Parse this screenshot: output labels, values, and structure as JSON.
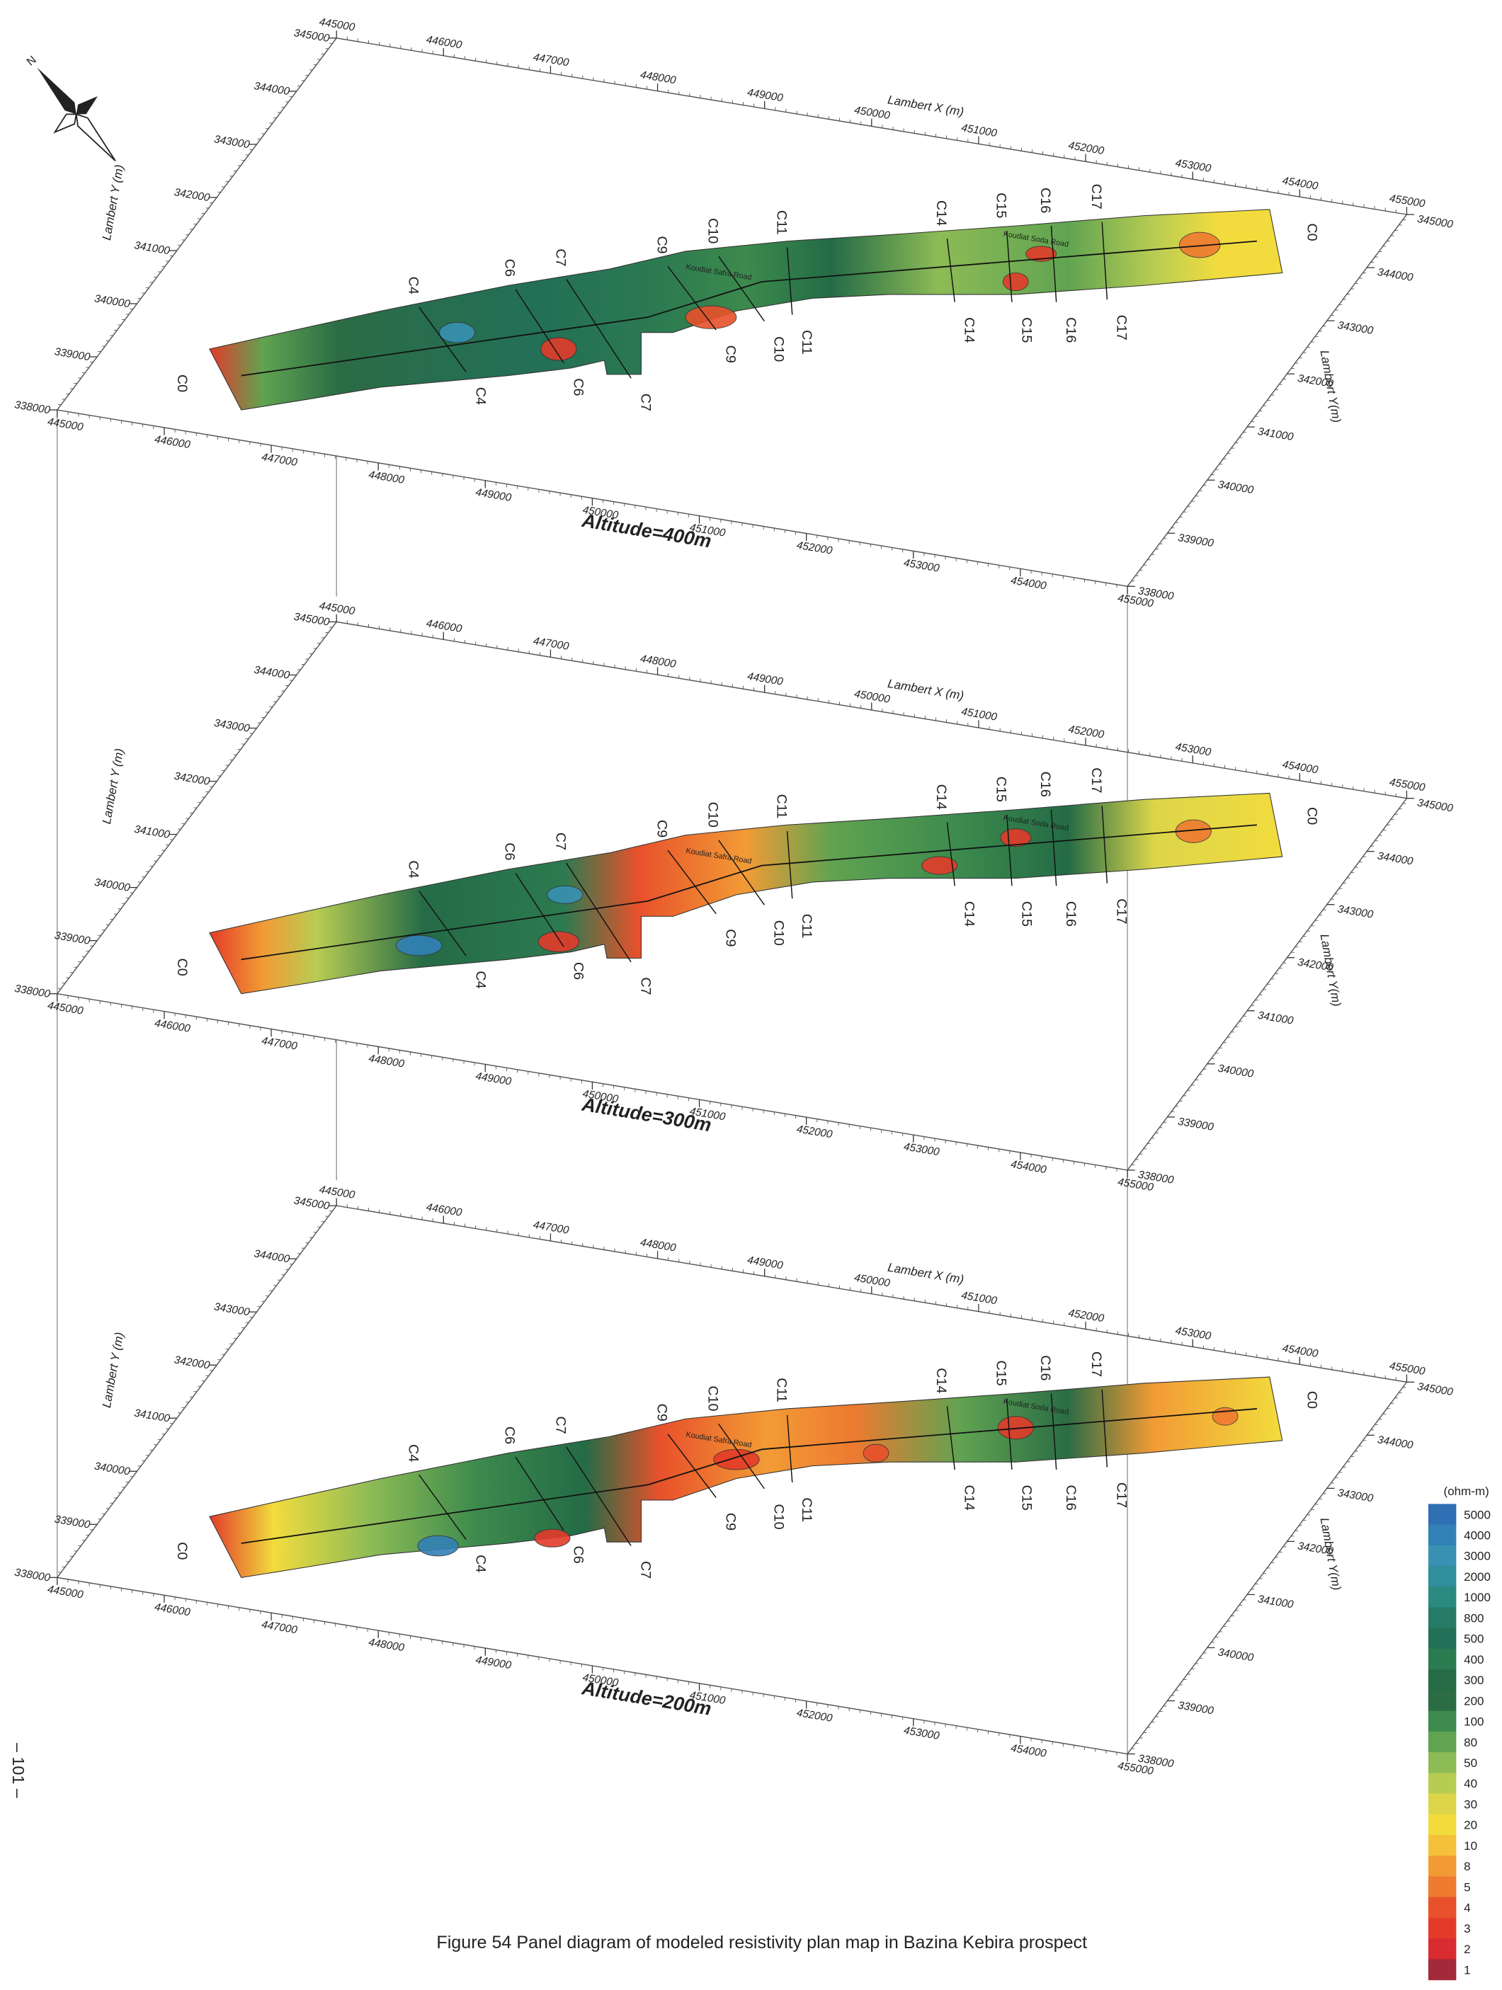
{
  "figure": {
    "caption": "Figure 54   Panel diagram of modeled resistivity plan map in Bazina Kebira prospect",
    "page_number": "– 101 –"
  },
  "axes": {
    "x_label": "Lambert X (m)",
    "y_label": "Lambert Y (m)",
    "y_label_right": "Lambert Y(m)",
    "x_ticks": [
      445000,
      446000,
      447000,
      448000,
      449000,
      450000,
      451000,
      452000,
      453000,
      454000,
      455000
    ],
    "y_ticks": [
      338000,
      339000,
      340000,
      341000,
      342000,
      343000,
      344000,
      345000
    ]
  },
  "profiles": [
    "C0",
    "C4",
    "C6",
    "C7",
    "C9",
    "C10",
    "C11",
    "C14",
    "C15",
    "C16",
    "C17"
  ],
  "road_labels": [
    "Koudiat Safra Road",
    "Koudiat Soda Road"
  ],
  "panels": [
    {
      "title": "Altitude=400m"
    },
    {
      "title": "Altitude=300m"
    },
    {
      "title": "Altitude=200m"
    }
  ],
  "legend": {
    "unit": "(ohm-m)",
    "levels": [
      {
        "value": 5000,
        "color": "#2f6fb3"
      },
      {
        "value": 4000,
        "color": "#3281b6"
      },
      {
        "value": 3000,
        "color": "#3891b2"
      },
      {
        "value": 2000,
        "color": "#2f8f9c"
      },
      {
        "value": 1000,
        "color": "#2a8a80"
      },
      {
        "value": 800,
        "color": "#267b66"
      },
      {
        "value": 500,
        "color": "#236f57"
      },
      {
        "value": 400,
        "color": "#2c7a50"
      },
      {
        "value": 300,
        "color": "#246b46"
      },
      {
        "value": 200,
        "color": "#2b6c45"
      },
      {
        "value": 100,
        "color": "#3c8a4d"
      },
      {
        "value": 80,
        "color": "#60a351"
      },
      {
        "value": 50,
        "color": "#8dbb56"
      },
      {
        "value": 40,
        "color": "#b7cc53"
      },
      {
        "value": 30,
        "color": "#dcd54a"
      },
      {
        "value": 20,
        "color": "#f2dc3d"
      },
      {
        "value": 10,
        "color": "#f6c13a"
      },
      {
        "value": 8,
        "color": "#f29b35"
      },
      {
        "value": 5,
        "color": "#ee7a30"
      },
      {
        "value": 4,
        "color": "#e8512b"
      },
      {
        "value": 3,
        "color": "#e33b2a"
      },
      {
        "value": 2,
        "color": "#d92c30"
      },
      {
        "value": 1,
        "color": "#a32a3b"
      }
    ]
  }
}
